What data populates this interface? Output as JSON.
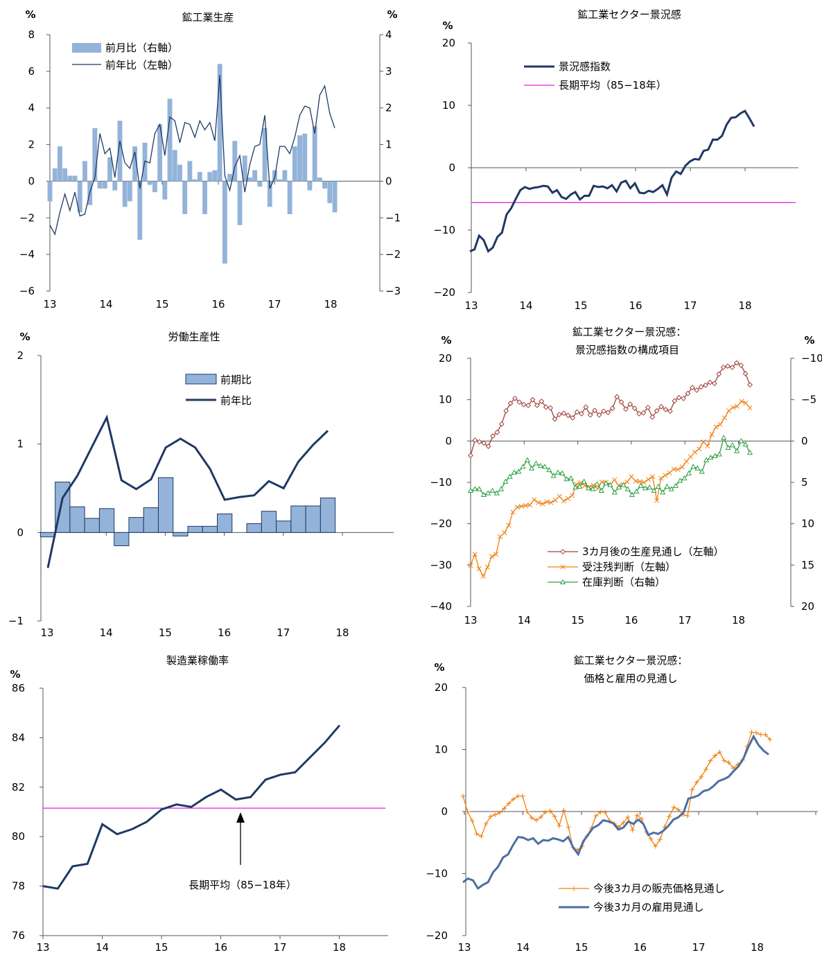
{
  "chart_data": [
    {
      "id": "mining-production",
      "type": "bar+line",
      "title": "鉱工業生産",
      "unit_left": "%",
      "unit_right": "%",
      "yleft_lim": [
        -6,
        8
      ],
      "yleft_ticks": [
        "8",
        "6",
        "4",
        "2",
        "0",
        "−2",
        "−4",
        "−6"
      ],
      "yright_lim": [
        -3,
        4
      ],
      "yright_ticks": [
        "4",
        "3",
        "2",
        "1",
        "0",
        "−1",
        "−2",
        "−3"
      ],
      "x_ticks": [
        "13",
        "14",
        "15",
        "16",
        "17",
        "18"
      ],
      "legend": [
        "前月比（右軸）",
        "前年比（左軸）"
      ],
      "colors": {
        "bar": "#93b3d9",
        "line": "#1f3864"
      },
      "series": [
        {
          "name": "前月比（右軸）",
          "axis": "right",
          "kind": "bar",
          "values": [
            -0.55,
            0.35,
            0.95,
            0.35,
            0.15,
            0.15,
            -0.85,
            0.55,
            -0.65,
            1.45,
            -0.2,
            -0.2,
            0.65,
            -0.25,
            1.65,
            -0.7,
            -0.55,
            0.95,
            -1.6,
            1.05,
            -0.1,
            -0.3,
            1.55,
            -0.5,
            2.25,
            0.85,
            0.45,
            -0.9,
            0.55,
            0.05,
            0.25,
            -0.9,
            0.25,
            0.3,
            3.2,
            -2.25,
            0.2,
            1.1,
            -1.2,
            0.7,
            0.1,
            0.3,
            -0.15,
            1.45,
            -0.7,
            0.3,
            0.05,
            0.3,
            -0.9,
            0.95,
            1.25,
            1.3,
            -0.25,
            1.5,
            0.1,
            -0.2,
            -0.6,
            -0.85
          ]
        },
        {
          "name": "前年比（左軸）",
          "axis": "left",
          "kind": "line",
          "values": [
            -2.4,
            -2.9,
            -1.7,
            -0.7,
            -1.6,
            -0.6,
            -1.9,
            -1.8,
            -0.6,
            0.2,
            2.6,
            1.5,
            1.8,
            0.2,
            2.2,
            1.0,
            0.7,
            1.6,
            -0.4,
            1.1,
            1.0,
            2.6,
            3.1,
            1.4,
            3.5,
            3.3,
            2.1,
            3.2,
            3.1,
            2.4,
            3.3,
            2.8,
            3.2,
            2.2,
            5.8,
            0.3,
            -0.5,
            0.8,
            1.4,
            -0.6,
            0.9,
            1.9,
            2.0,
            3.6,
            -0.4,
            0.2,
            1.9,
            1.9,
            1.5,
            2.4,
            3.6,
            4.1,
            4.0,
            2.6,
            4.7,
            5.2,
            3.7,
            2.9
          ]
        }
      ]
    },
    {
      "id": "business-sentiment",
      "type": "line",
      "title": "鉱工業セクター景況感",
      "unit_left": "%",
      "yleft_lim": [
        -20,
        20
      ],
      "yleft_ticks": [
        "20",
        "10",
        "0",
        "−10",
        "−20"
      ],
      "x_ticks": [
        "13",
        "14",
        "15",
        "16",
        "17",
        "18"
      ],
      "legend": [
        "景況感指数",
        "長期平均（85−18年）"
      ],
      "long_term_average": -5.6,
      "colors": {
        "line": "#1f3864",
        "average": "#e020e0"
      },
      "series": [
        {
          "name": "景況感指数",
          "values": [
            -13.4,
            -13.1,
            -10.9,
            -11.6,
            -13.4,
            -12.8,
            -11.1,
            -10.4,
            -7.5,
            -6.5,
            -5.0,
            -3.6,
            -3.1,
            -3.4,
            -3.2,
            -3.1,
            -2.9,
            -3.0,
            -4.0,
            -3.6,
            -4.7,
            -5.0,
            -4.3,
            -3.9,
            -5.1,
            -4.5,
            -4.5,
            -2.9,
            -3.1,
            -3.0,
            -3.3,
            -2.8,
            -3.8,
            -2.4,
            -2.1,
            -3.3,
            -2.5,
            -4.0,
            -4.1,
            -3.7,
            -3.9,
            -3.4,
            -2.8,
            -4.3,
            -1.6,
            -0.6,
            -1.0,
            0.3,
            1.0,
            1.4,
            1.3,
            2.7,
            2.9,
            4.5,
            4.5,
            5.1,
            6.9,
            8.0,
            8.1,
            8.7,
            9.1,
            7.9,
            6.6
          ]
        }
      ]
    },
    {
      "id": "labor-productivity",
      "type": "bar+line",
      "title": "労働生産性",
      "unit_left": "%",
      "yleft_lim": [
        -1,
        2
      ],
      "yleft_ticks": [
        "2",
        "1",
        "0",
        "−1"
      ],
      "x_ticks": [
        "13",
        "14",
        "15",
        "16",
        "17",
        "18"
      ],
      "legend": [
        "前期比",
        "前年比"
      ],
      "colors": {
        "bar": "#93b3d9",
        "line": "#1f3864"
      },
      "series": [
        {
          "name": "前期比",
          "kind": "bar",
          "values": [
            -0.05,
            0.57,
            0.29,
            0.16,
            0.27,
            -0.15,
            0.17,
            0.28,
            0.62,
            -0.04,
            0.07,
            0.07,
            0.21,
            0.0,
            0.1,
            0.24,
            0.13,
            0.3,
            0.3,
            0.39
          ]
        },
        {
          "name": "前年比",
          "kind": "line",
          "values": [
            -0.4,
            0.39,
            0.64,
            0.97,
            1.3,
            0.59,
            0.49,
            0.6,
            0.96,
            1.06,
            0.96,
            0.72,
            0.37,
            0.4,
            0.42,
            0.58,
            0.5,
            0.8,
            0.99,
            1.15
          ]
        }
      ]
    },
    {
      "id": "sentiment-components",
      "type": "line",
      "title": "鉱工業セクター景況感：",
      "subtitle": "景況感指数の構成項目",
      "unit_left": "%",
      "unit_right": "%",
      "yleft_lim": [
        -40,
        20
      ],
      "yleft_ticks": [
        "20",
        "10",
        "0",
        "−10",
        "−20",
        "−30",
        "−40"
      ],
      "yright_lim": [
        20,
        -10
      ],
      "yright_ticks": [
        "−10",
        "−5",
        "0",
        "5",
        "10",
        "15",
        "20"
      ],
      "x_ticks": [
        "13",
        "14",
        "15",
        "16",
        "17",
        "18"
      ],
      "legend": [
        "3カ月後の生産見通し（左軸）",
        "受注残判断（左軸）",
        "在庫判断（右軸）"
      ],
      "colors": {
        "production": "#a0403a",
        "orders": "#f07f10",
        "inventory": "#2aa040"
      },
      "series": [
        {
          "name": "3カ月後の生産見通し（左軸）",
          "axis": "left",
          "marker": "diamond",
          "values": [
            -3.5,
            0.2,
            -0.2,
            -0.5,
            -1.3,
            1.2,
            2.1,
            4.1,
            7.3,
            9.1,
            10.3,
            9.4,
            8.8,
            8.6,
            10.0,
            8.6,
            9.6,
            8.2,
            8.0,
            5.3,
            6.4,
            6.7,
            6.2,
            5.6,
            7.0,
            6.6,
            8.2,
            6.3,
            7.4,
            6.3,
            7.2,
            6.9,
            7.9,
            10.7,
            9.4,
            7.7,
            8.9,
            7.9,
            6.6,
            6.8,
            8.1,
            5.8,
            7.3,
            8.3,
            7.6,
            7.2,
            9.7,
            10.5,
            10.3,
            11.5,
            12.9,
            12.3,
            13.1,
            13.5,
            14.2,
            13.9,
            16.2,
            17.8,
            18.1,
            17.8,
            18.9,
            18.3,
            16.3,
            13.6
          ]
        },
        {
          "name": "受注残判断（左軸）",
          "axis": "left",
          "marker": "cross",
          "values": [
            -30.1,
            -27.4,
            -30.9,
            -32.7,
            -30.5,
            -27.9,
            -27.4,
            -23.1,
            -22.2,
            -20.4,
            -17.2,
            -16.0,
            -15.8,
            -15.6,
            -15.5,
            -14.2,
            -14.9,
            -15.2,
            -14.7,
            -14.9,
            -14.3,
            -13.4,
            -14.5,
            -13.9,
            -13.2,
            -10.5,
            -10.1,
            -10.8,
            -11.1,
            -10.7,
            -11.5,
            -9.9,
            -10.0,
            -10.6,
            -9.4,
            -10.8,
            -10.6,
            -9.9,
            -8.6,
            -9.7,
            -9.8,
            -10.0,
            -9.3,
            -8.6,
            -14.4,
            -9.0,
            -8.3,
            -7.7,
            -6.8,
            -6.9,
            -6.3,
            -4.9,
            -3.8,
            -2.7,
            -1.9,
            -0.2,
            -1.2,
            1.6,
            3.4,
            4.0,
            5.6,
            7.3,
            8.1,
            8.4,
            9.6,
            9.2,
            8.0
          ]
        },
        {
          "name": "在庫判断（右軸）",
          "axis": "right",
          "marker": "triangle",
          "values": [
            6.0,
            5.8,
            5.8,
            6.5,
            6.3,
            6.0,
            6.3,
            5.8,
            4.9,
            4.3,
            3.8,
            3.7,
            3.1,
            2.3,
            3.3,
            2.7,
            3.0,
            3.1,
            3.5,
            4.2,
            3.8,
            3.9,
            4.6,
            4.5,
            5.6,
            5.5,
            4.9,
            5.7,
            5.8,
            5.2,
            6.0,
            5.1,
            5.3,
            6.2,
            5.6,
            5.3,
            5.8,
            6.5,
            6.1,
            5.4,
            5.7,
            5.6,
            6.0,
            5.5,
            6.2,
            5.5,
            5.8,
            5.4,
            4.8,
            4.5,
            3.9,
            3.1,
            3.3,
            3.7,
            2.3,
            2.0,
            1.8,
            1.6,
            -0.4,
            0.8,
            0.5,
            1.2,
            0.0,
            0.4,
            1.4
          ]
        }
      ]
    },
    {
      "id": "capacity-utilization",
      "type": "line",
      "title": "製造業稼働率",
      "unit_left": "%",
      "yleft_lim": [
        76,
        86
      ],
      "yleft_ticks": [
        "86",
        "84",
        "82",
        "80",
        "78",
        "76"
      ],
      "x_ticks": [
        "13",
        "14",
        "15",
        "16",
        "17",
        "18"
      ],
      "long_term_average": 81.15,
      "annotation": "長期平均（85−18年）",
      "colors": {
        "line": "#1f3864",
        "average": "#e020e0"
      },
      "series": [
        {
          "name": "",
          "values": [
            78.0,
            77.9,
            78.8,
            78.9,
            80.5,
            80.1,
            80.3,
            80.6,
            81.1,
            81.3,
            81.2,
            81.6,
            81.9,
            81.5,
            81.6,
            82.3,
            82.5,
            82.6,
            83.2,
            83.8,
            84.5
          ]
        }
      ]
    },
    {
      "id": "price-employment",
      "type": "line",
      "title": "鉱工業セクター景況感：",
      "subtitle": "価格と雇用の見通し",
      "unit_left": "%",
      "yleft_lim": [
        -20,
        20
      ],
      "yleft_ticks": [
        "20",
        "10",
        "0",
        "−10",
        "−20"
      ],
      "x_ticks": [
        "13",
        "14",
        "15",
        "16",
        "17",
        "18"
      ],
      "legend": [
        "今後3カ月の販売価格見通し",
        "今後3カ月の雇用見通し"
      ],
      "colors": {
        "price": "#f07f10",
        "employment": "#4a6fa5"
      },
      "series": [
        {
          "name": "今後3カ月の販売価格見通し",
          "marker": "plus",
          "values": [
            2.5,
            0.0,
            -1.5,
            -3.6,
            -4.0,
            -2.0,
            -0.8,
            -0.5,
            -0.2,
            0.5,
            1.3,
            2.0,
            2.5,
            2.5,
            0.0,
            -1.0,
            -1.4,
            -0.9,
            -0.1,
            0.1,
            -0.8,
            -2.3,
            0.2,
            -2.5,
            -5.8,
            -6.2,
            -5.6,
            -4.0,
            -2.7,
            -0.7,
            -0.1,
            -0.1,
            -1.5,
            -1.9,
            -2.5,
            -1.8,
            -0.9,
            -3.0,
            -0.6,
            -1.2,
            -3.3,
            -4.4,
            -5.6,
            -4.5,
            -2.5,
            -0.8,
            0.7,
            0.3,
            -0.5,
            -0.7,
            3.5,
            4.7,
            5.6,
            6.8,
            8.2,
            9.0,
            9.6,
            8.2,
            7.9,
            7.0,
            7.6,
            8.3,
            10.5,
            12.8,
            12.7,
            12.4,
            12.4,
            11.6
          ]
        },
        {
          "name": "今後3カ月の雇用見通し",
          "marker": "none",
          "values": [
            -11.4,
            -10.8,
            -11.1,
            -12.4,
            -11.8,
            -11.4,
            -9.8,
            -8.9,
            -7.4,
            -6.9,
            -5.4,
            -4.1,
            -4.2,
            -4.6,
            -4.3,
            -5.2,
            -4.6,
            -4.7,
            -4.3,
            -4.5,
            -4.8,
            -4.1,
            -5.8,
            -6.9,
            -4.8,
            -3.7,
            -2.6,
            -2.2,
            -1.4,
            -1.6,
            -1.9,
            -2.9,
            -2.6,
            -1.6,
            -2.0,
            -1.3,
            -2.0,
            -3.8,
            -3.4,
            -3.6,
            -3.1,
            -2.3,
            -1.3,
            -0.9,
            -0.2,
            2.1,
            2.3,
            2.6,
            3.3,
            3.5,
            4.1,
            4.9,
            5.2,
            5.6,
            6.5,
            7.3,
            8.6,
            10.5,
            12.1,
            10.7,
            9.8,
            9.2
          ]
        }
      ]
    }
  ]
}
